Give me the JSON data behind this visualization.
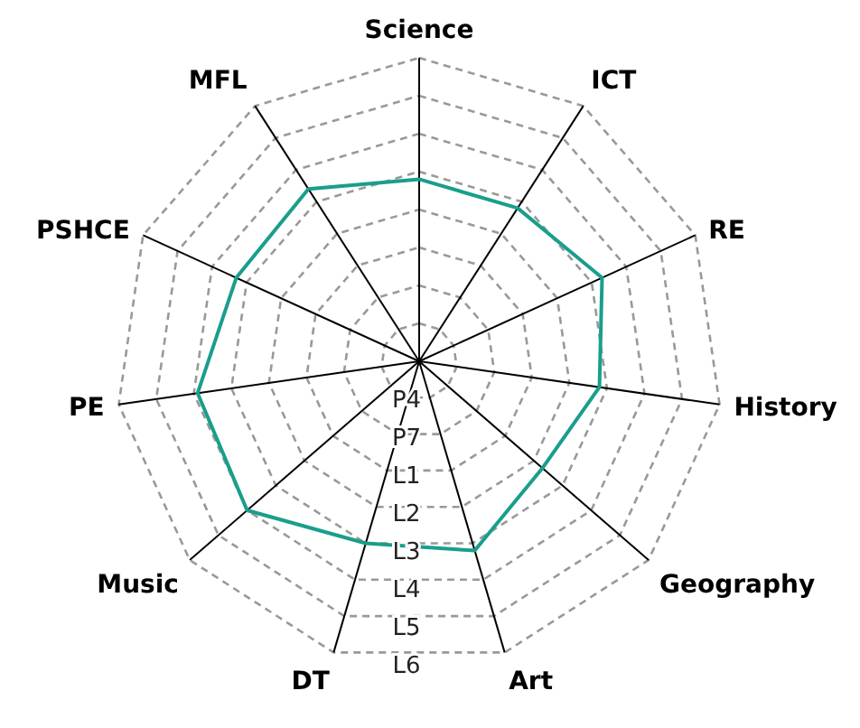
{
  "chart_data": {
    "type": "radar",
    "categories": [
      "Science",
      "ICT",
      "RE",
      "History",
      "Geography",
      "Art",
      "DT",
      "Music",
      "PE",
      "PSHCE",
      "MFL"
    ],
    "series": [
      {
        "color": "#1a9e8c",
        "values": [
          4.8,
          4.8,
          5.3,
          4.8,
          4.3,
          5.2,
          5.0,
          6.0,
          5.9,
          5.3,
          5.4
        ]
      }
    ],
    "ylim": [
      0,
      8
    ],
    "yticks": [
      {
        "value": 1,
        "label": "P4"
      },
      {
        "value": 2,
        "label": "P7"
      },
      {
        "value": 3,
        "label": "L1"
      },
      {
        "value": 4,
        "label": "L2"
      },
      {
        "value": 5,
        "label": "L3"
      },
      {
        "value": 6,
        "label": "L4"
      },
      {
        "value": 7,
        "label": "L5"
      },
      {
        "value": 8,
        "label": "L6"
      }
    ],
    "grid": true,
    "marker": "none"
  }
}
